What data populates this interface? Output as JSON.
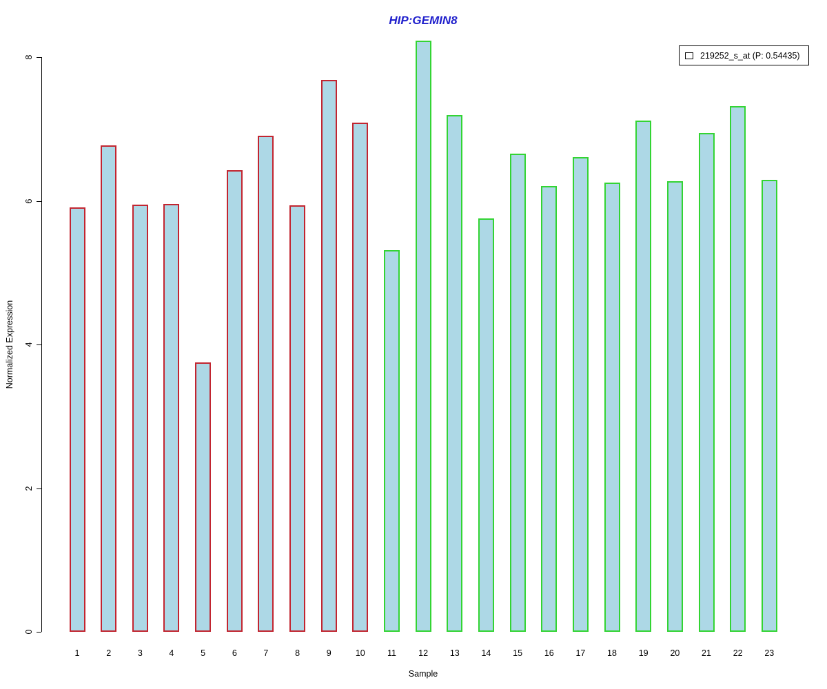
{
  "chart_data": {
    "type": "bar",
    "title": "HIP:GEMIN8",
    "title_color": "#2020CC",
    "xlabel": "Sample",
    "ylabel": "Normalized Expression",
    "categories": [
      "1",
      "2",
      "3",
      "4",
      "5",
      "6",
      "7",
      "8",
      "9",
      "10",
      "11",
      "12",
      "13",
      "14",
      "15",
      "16",
      "17",
      "18",
      "19",
      "20",
      "21",
      "22",
      "23"
    ],
    "values": [
      5.91,
      6.77,
      5.95,
      5.96,
      3.75,
      6.43,
      6.91,
      5.94,
      7.68,
      7.09,
      5.31,
      8.23,
      7.19,
      5.76,
      6.66,
      6.21,
      6.61,
      6.25,
      7.12,
      6.27,
      6.95,
      7.32,
      6.29
    ],
    "groups": [
      "red",
      "red",
      "red",
      "red",
      "red",
      "red",
      "red",
      "red",
      "red",
      "red",
      "green",
      "green",
      "green",
      "green",
      "green",
      "green",
      "green",
      "green",
      "green",
      "green",
      "green",
      "green",
      "green"
    ],
    "group_border_colors": {
      "red": "#C22530",
      "green": "#33D433"
    },
    "bar_fill": "#ADD8E6",
    "yticks": [
      0,
      2,
      4,
      6,
      8
    ],
    "ylim": [
      0,
      8.4
    ],
    "grid": false,
    "legend_position": "top-right",
    "legend": [
      {
        "label": "219252_s_at (P: 0.54435)",
        "swatch_fill": "#ADD8E6",
        "swatch_border": "#000000"
      }
    ]
  }
}
